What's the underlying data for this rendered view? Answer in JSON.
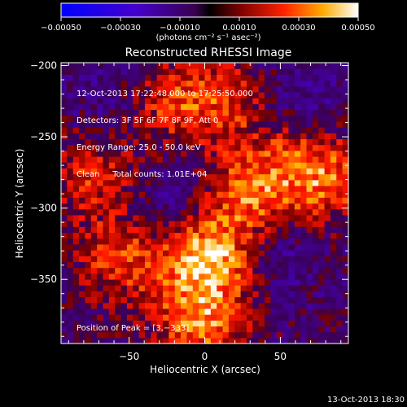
{
  "colorbar": {
    "tick_labels": [
      "−0.00050",
      "−0.00030",
      "−0.00010",
      "0.00010",
      "0.00030",
      "0.00050"
    ],
    "ticks": [
      -0.0005,
      -0.0003,
      -0.0001,
      0.0001,
      0.0003,
      0.0005
    ],
    "range": [
      -0.0005,
      0.0005
    ],
    "unit_label": "(photons cm⁻² s⁻¹ asec⁻²)"
  },
  "chart_data": {
    "type": "heatmap",
    "title": "Reconstructed RHESSI Image",
    "xlabel": "Heliocentric X (arcsec)",
    "ylabel": "Heliocentric Y (arcsec)",
    "xlim": [
      -95,
      95
    ],
    "ylim": [
      -395,
      -198
    ],
    "xticks": [
      -50,
      0,
      50
    ],
    "xtick_labels": [
      "−50",
      "0",
      "50"
    ],
    "yticks": [
      -200,
      -250,
      -300,
      -350
    ],
    "ytick_labels": [
      "−200",
      "−250",
      "−300",
      "−350"
    ],
    "annotation_lines": [
      "12-Oct-2013 17:22:48.000 to 17:25:50.000",
      "Detectors: 3F 5F 6F 7F 8F 9F, Att 0",
      "Energy Range: 25.0 - 50.0 keV",
      "Clean     Total counts: 1.01E+04"
    ],
    "peak_label": "Position of Peak = [3,−333]",
    "peak": [
      3,
      -333
    ],
    "bright_regions": [
      {
        "x": 3,
        "y": -333,
        "intensity": 1.0
      },
      {
        "x": -2,
        "y": -380,
        "intensity": 0.75
      },
      {
        "x": 30,
        "y": -290,
        "intensity": 0.7
      },
      {
        "x": 80,
        "y": -280,
        "intensity": 0.65
      },
      {
        "x": 60,
        "y": -250,
        "intensity": 0.6
      },
      {
        "x": -55,
        "y": -335,
        "intensity": 0.6
      },
      {
        "x": -75,
        "y": -275,
        "intensity": 0.55
      },
      {
        "x": -25,
        "y": -225,
        "intensity": 0.55
      },
      {
        "x": 15,
        "y": -225,
        "intensity": 0.5
      }
    ],
    "dark_regions": [
      {
        "x": 62,
        "y": -236,
        "intensity": -0.6
      },
      {
        "x": -20,
        "y": -300,
        "intensity": -0.3
      },
      {
        "x": 45,
        "y": -330,
        "intensity": -0.3
      },
      {
        "x": -60,
        "y": -225,
        "intensity": -0.25
      }
    ]
  },
  "footer": {
    "timestamp": "13-Oct-2013 18:30"
  }
}
